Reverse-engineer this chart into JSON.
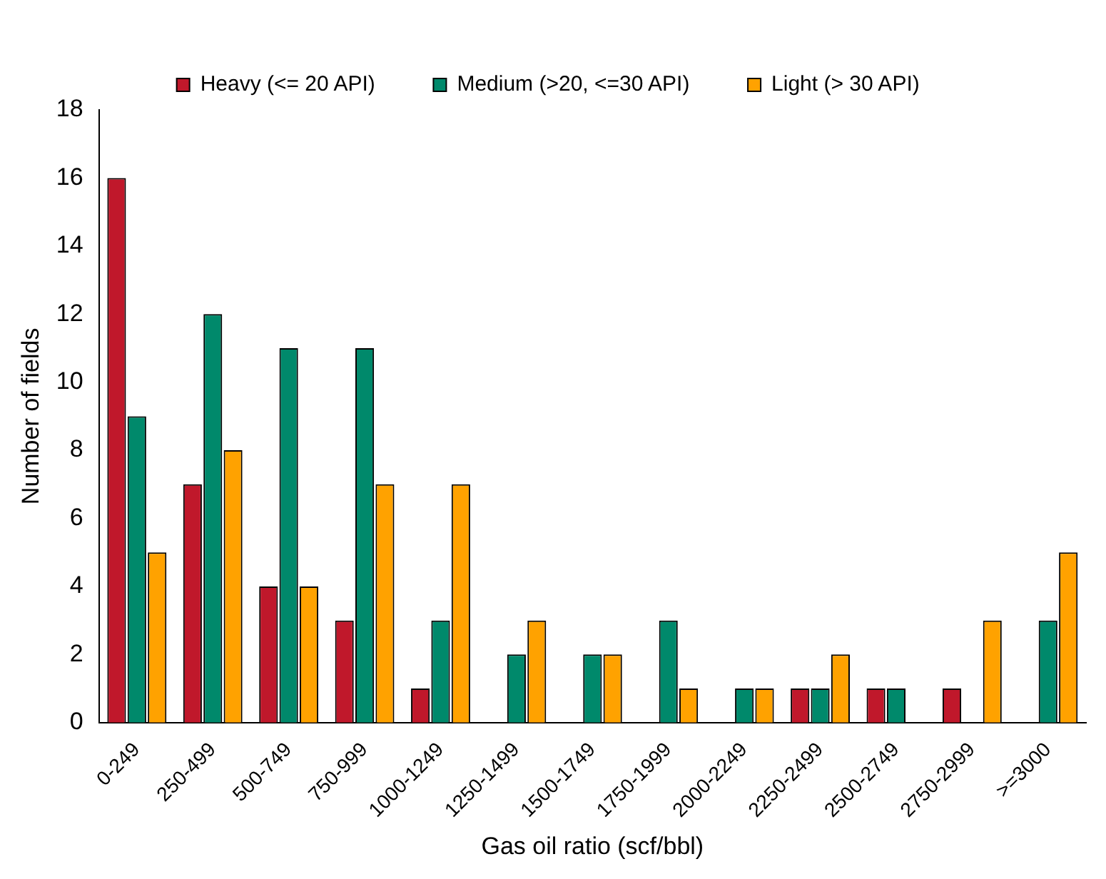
{
  "chart_data": {
    "type": "bar",
    "xlabel": "Gas oil ratio (scf/bbl)",
    "ylabel": "Number of fields",
    "categories": [
      "0-249",
      "250-499",
      "500-749",
      "750-999",
      "1000-1249",
      "1250-1499",
      "1500-1749",
      "1750-1999",
      "2000-2249",
      "2250-2499",
      "2500-2749",
      "2750-2999",
      ">=3000"
    ],
    "series": [
      {
        "name": "Heavy (<= 20 API)",
        "color": "#c0182b",
        "values": [
          16,
          7,
          4,
          3,
          1,
          0,
          0,
          0,
          0,
          1,
          1,
          1,
          0
        ]
      },
      {
        "name": "Medium (>20, <=30 API)",
        "color": "#00896b",
        "values": [
          9,
          12,
          11,
          11,
          3,
          2,
          2,
          3,
          1,
          1,
          1,
          0,
          3
        ]
      },
      {
        "name": "Light (> 30 API)",
        "color": "#ffa200",
        "values": [
          5,
          8,
          4,
          7,
          7,
          3,
          2,
          1,
          1,
          2,
          0,
          3,
          5
        ]
      }
    ],
    "ylim": [
      0,
      18
    ],
    "yticks": [
      0,
      2,
      4,
      6,
      8,
      10,
      12,
      14,
      16,
      18
    ],
    "grid": false,
    "legend": "top"
  }
}
